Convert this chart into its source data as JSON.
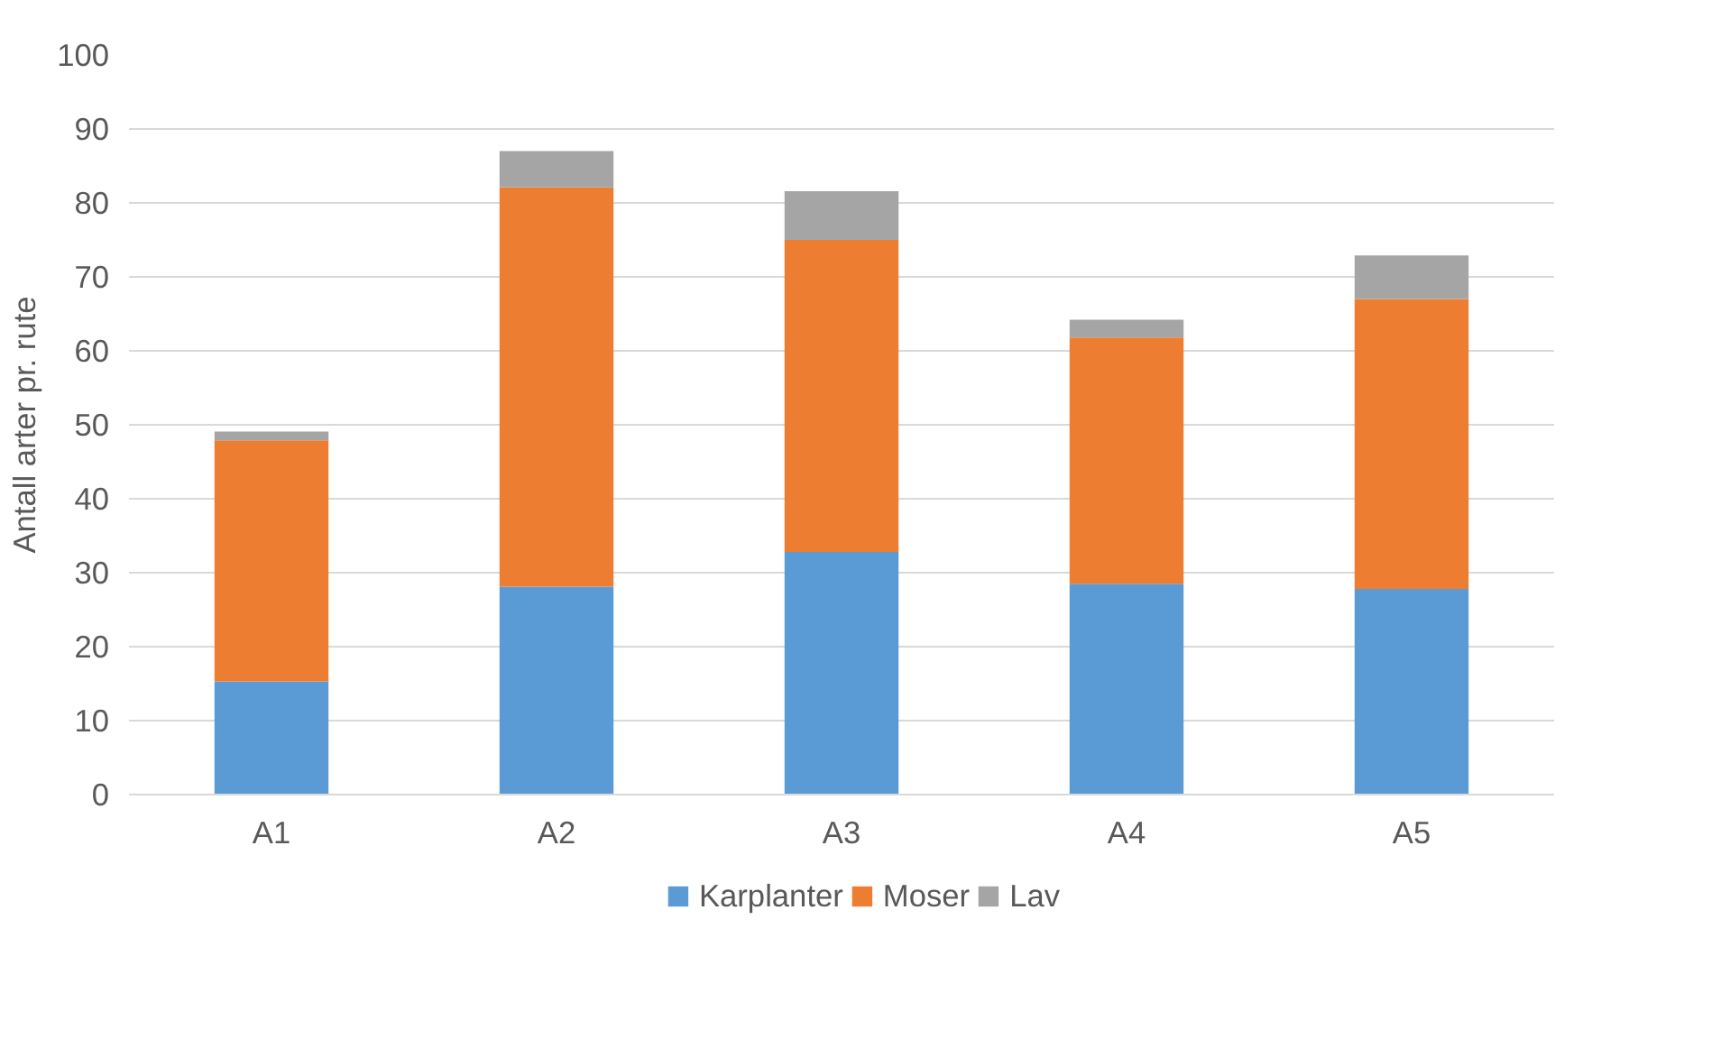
{
  "chart_data": {
    "type": "bar",
    "stacked": true,
    "ylabel": "Antall arter pr. rute",
    "categories": [
      "A1",
      "A2",
      "A3",
      "A4",
      "A5"
    ],
    "series": [
      {
        "name": "Karplanter",
        "color": "#5b9bd5",
        "values": [
          15.3,
          28.1,
          32.8,
          28.5,
          27.8
        ]
      },
      {
        "name": "Moser",
        "color": "#ed7d31",
        "values": [
          32.6,
          54.0,
          42.2,
          33.3,
          39.2
        ]
      },
      {
        "name": "Lav",
        "color": "#a5a5a5",
        "values": [
          1.2,
          4.9,
          6.6,
          2.4,
          5.9
        ]
      }
    ],
    "ylim": [
      0,
      100
    ],
    "yticks": [
      0,
      10,
      20,
      30,
      40,
      50,
      60,
      70,
      80,
      90,
      100
    ],
    "grid": "y",
    "legend": "bottom"
  }
}
